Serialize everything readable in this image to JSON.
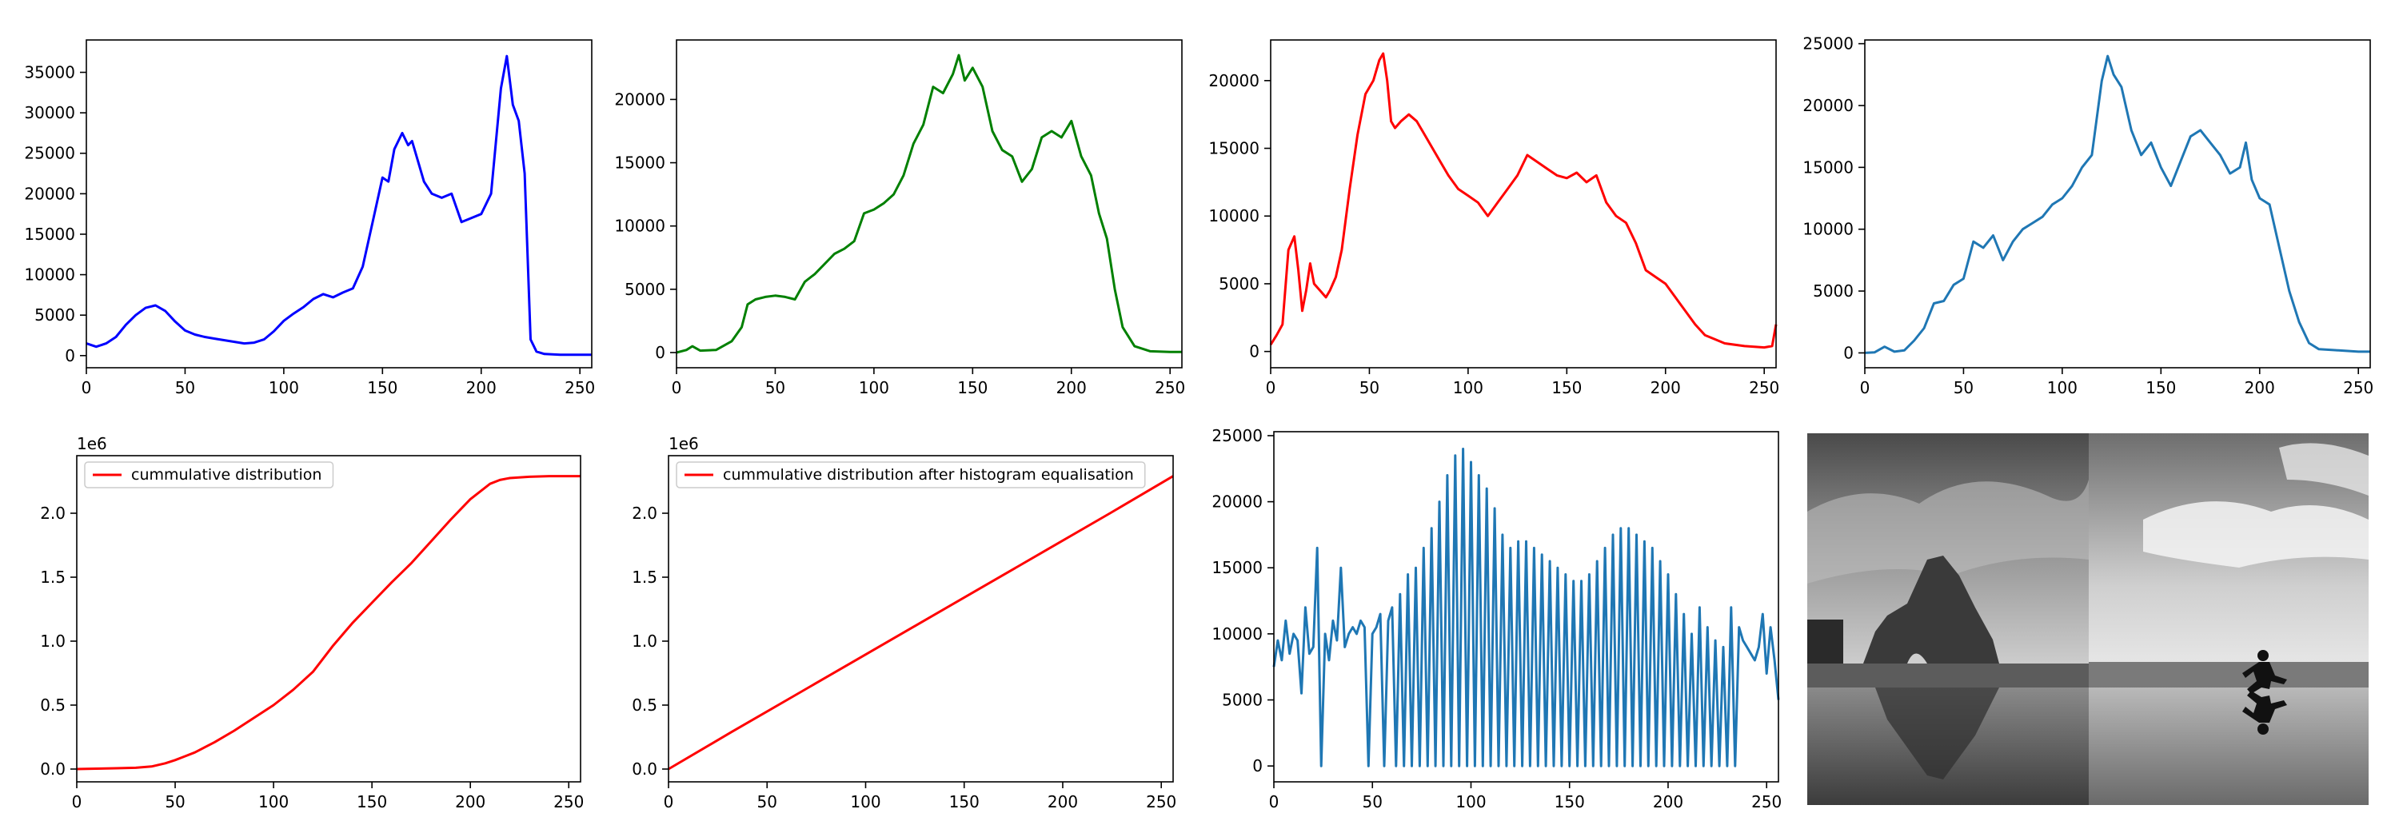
{
  "chart_data": [
    {
      "type": "line",
      "xlim": [
        0,
        256
      ],
      "ylim": [
        -1500,
        39000
      ],
      "xticks": [
        0,
        50,
        100,
        150,
        200,
        250
      ],
      "yticks": [
        0,
        5000,
        10000,
        15000,
        20000,
        25000,
        30000,
        35000
      ],
      "color": "#0000ff",
      "x": [
        0,
        5,
        10,
        15,
        20,
        25,
        30,
        35,
        40,
        45,
        50,
        55,
        60,
        65,
        70,
        75,
        80,
        85,
        90,
        95,
        100,
        105,
        110,
        115,
        120,
        125,
        130,
        135,
        140,
        145,
        150,
        153,
        156,
        160,
        163,
        165,
        168,
        171,
        175,
        180,
        185,
        190,
        195,
        200,
        205,
        210,
        213,
        216,
        219,
        222,
        225,
        228,
        232,
        240,
        250,
        256
      ],
      "y": [
        1500,
        1100,
        1500,
        2300,
        3800,
        5000,
        5900,
        6200,
        5500,
        4200,
        3100,
        2600,
        2300,
        2100,
        1900,
        1700,
        1500,
        1600,
        2000,
        3000,
        4300,
        5200,
        6000,
        7000,
        7600,
        7200,
        7800,
        8300,
        11000,
        16500,
        22000,
        21500,
        25500,
        27500,
        26000,
        26500,
        24000,
        21500,
        20000,
        19500,
        20000,
        16500,
        17000,
        17500,
        20000,
        33000,
        37000,
        31000,
        29000,
        22500,
        2000,
        500,
        200,
        100,
        100,
        100
      ]
    },
    {
      "type": "line",
      "xlim": [
        0,
        256
      ],
      "ylim": [
        -1200,
        24700
      ],
      "xticks": [
        0,
        50,
        100,
        150,
        200,
        250
      ],
      "yticks": [
        0,
        5000,
        10000,
        15000,
        20000
      ],
      "color": "#008000",
      "x": [
        0,
        5,
        8,
        12,
        20,
        28,
        33,
        36,
        40,
        45,
        50,
        55,
        60,
        65,
        70,
        75,
        80,
        85,
        90,
        95,
        100,
        105,
        110,
        115,
        120,
        125,
        130,
        135,
        140,
        143,
        146,
        150,
        155,
        160,
        165,
        170,
        175,
        180,
        185,
        190,
        195,
        200,
        205,
        210,
        214,
        218,
        222,
        226,
        232,
        240,
        250,
        256
      ],
      "y": [
        0,
        200,
        500,
        150,
        200,
        900,
        2000,
        3800,
        4200,
        4400,
        4500,
        4400,
        4200,
        5600,
        6200,
        7000,
        7800,
        8200,
        8800,
        11000,
        11300,
        11800,
        12500,
        14000,
        16500,
        18000,
        21000,
        20500,
        22000,
        23500,
        21500,
        22500,
        21000,
        17500,
        16000,
        15500,
        13500,
        14500,
        17000,
        17500,
        17000,
        18300,
        15500,
        14000,
        11000,
        9000,
        5000,
        2000,
        500,
        100,
        50,
        50
      ]
    },
    {
      "type": "line",
      "xlim": [
        0,
        256
      ],
      "ylim": [
        -1200,
        23000
      ],
      "xticks": [
        0,
        50,
        100,
        150,
        200,
        250
      ],
      "yticks": [
        0,
        5000,
        10000,
        15000,
        20000
      ],
      "color": "#ff0000",
      "x": [
        0,
        3,
        6,
        9,
        12,
        14,
        16,
        18,
        20,
        22,
        25,
        28,
        30,
        33,
        36,
        40,
        44,
        48,
        52,
        55,
        57,
        59,
        61,
        63,
        66,
        70,
        74,
        78,
        82,
        86,
        90,
        95,
        100,
        105,
        110,
        115,
        120,
        125,
        130,
        135,
        140,
        145,
        150,
        155,
        160,
        165,
        170,
        175,
        180,
        185,
        190,
        195,
        200,
        205,
        210,
        215,
        220,
        225,
        230,
        240,
        250,
        254,
        256
      ],
      "y": [
        500,
        1200,
        2000,
        7500,
        8500,
        6000,
        3000,
        4500,
        6500,
        5000,
        4500,
        4000,
        4500,
        5500,
        7500,
        12000,
        16000,
        19000,
        20000,
        21500,
        22000,
        20000,
        17000,
        16500,
        17000,
        17500,
        17000,
        16000,
        15000,
        14000,
        13000,
        12000,
        11500,
        11000,
        10000,
        11000,
        12000,
        13000,
        14500,
        14000,
        13500,
        13000,
        12800,
        13200,
        12500,
        13000,
        11000,
        10000,
        9500,
        8000,
        6000,
        5500,
        5000,
        4000,
        3000,
        2000,
        1200,
        900,
        600,
        400,
        300,
        400,
        2000
      ]
    },
    {
      "type": "line",
      "xlim": [
        0,
        256
      ],
      "ylim": [
        -1200,
        25300
      ],
      "xticks": [
        0,
        50,
        100,
        150,
        200,
        250
      ],
      "yticks": [
        0,
        5000,
        10000,
        15000,
        20000,
        25000
      ],
      "color": "#1f77b4",
      "x": [
        0,
        5,
        10,
        15,
        20,
        25,
        30,
        35,
        40,
        45,
        50,
        55,
        60,
        65,
        70,
        75,
        80,
        85,
        90,
        95,
        100,
        105,
        110,
        115,
        120,
        123,
        126,
        130,
        135,
        140,
        145,
        150,
        155,
        160,
        165,
        170,
        175,
        180,
        185,
        190,
        193,
        196,
        200,
        205,
        210,
        215,
        220,
        225,
        230,
        240,
        250,
        256
      ],
      "y": [
        0,
        50,
        500,
        100,
        200,
        1000,
        2000,
        4000,
        4200,
        5500,
        6000,
        9000,
        8500,
        9500,
        7500,
        9000,
        10000,
        10500,
        11000,
        12000,
        12500,
        13500,
        15000,
        16000,
        22000,
        24000,
        22500,
        21500,
        18000,
        16000,
        17000,
        15000,
        13500,
        15500,
        17500,
        18000,
        17000,
        16000,
        14500,
        15000,
        17000,
        14000,
        12500,
        12000,
        8500,
        5000,
        2500,
        800,
        300,
        200,
        100,
        100
      ]
    },
    {
      "type": "line",
      "xlim": [
        0,
        256
      ],
      "ylim": [
        -100000,
        2450000
      ],
      "xticks": [
        0,
        50,
        100,
        150,
        200,
        250
      ],
      "yticks": [
        0,
        500000,
        1000000,
        1500000,
        2000000
      ],
      "ytick_labels": [
        "0.0",
        "0.5",
        "1.0",
        "1.5",
        "2.0"
      ],
      "offset_text": "1e6",
      "legend": "cummulative distribution",
      "legend_loc": "upper left",
      "color": "#ff0000",
      "x": [
        0,
        10,
        20,
        30,
        38,
        45,
        50,
        55,
        60,
        70,
        80,
        90,
        100,
        110,
        120,
        130,
        140,
        150,
        160,
        170,
        180,
        190,
        200,
        210,
        215,
        220,
        230,
        240,
        250,
        256
      ],
      "y": [
        0,
        3000,
        6000,
        10000,
        20000,
        45000,
        70000,
        100000,
        130000,
        210000,
        300000,
        400000,
        500000,
        620000,
        760000,
        960000,
        1140000,
        1300000,
        1460000,
        1610000,
        1780000,
        1950000,
        2110000,
        2230000,
        2260000,
        2275000,
        2285000,
        2290000,
        2290000,
        2290000
      ]
    },
    {
      "type": "line",
      "xlim": [
        0,
        256
      ],
      "ylim": [
        -100000,
        2450000
      ],
      "xticks": [
        0,
        50,
        100,
        150,
        200,
        250
      ],
      "yticks": [
        0,
        500000,
        1000000,
        1500000,
        2000000
      ],
      "ytick_labels": [
        "0.0",
        "0.5",
        "1.0",
        "1.5",
        "2.0"
      ],
      "offset_text": "1e6",
      "legend": "cummulative distribution after histogram equalisation",
      "legend_loc": "upper left",
      "color": "#ff0000",
      "x": [
        0,
        32,
        64,
        96,
        128,
        160,
        192,
        224,
        256
      ],
      "y": [
        0,
        290000,
        575000,
        860000,
        1145000,
        1430000,
        1715000,
        2000000,
        2290000
      ]
    },
    {
      "type": "line",
      "xlim": [
        0,
        256
      ],
      "ylim": [
        -1200,
        25300
      ],
      "xticks": [
        0,
        50,
        100,
        150,
        200,
        250
      ],
      "yticks": [
        0,
        5000,
        10000,
        15000,
        20000,
        25000
      ],
      "color": "#1f77b4",
      "x": [
        0,
        2,
        4,
        6,
        8,
        10,
        12,
        14,
        16,
        18,
        20,
        22,
        24,
        26,
        28,
        30,
        32,
        34,
        36,
        38,
        40,
        42,
        44,
        46,
        48,
        50,
        52,
        54,
        56,
        58,
        60,
        62,
        64,
        66,
        68,
        70,
        72,
        74,
        76,
        78,
        80,
        82,
        84,
        86,
        88,
        90,
        92,
        94,
        96,
        98,
        100,
        102,
        104,
        106,
        108,
        110,
        112,
        114,
        116,
        118,
        120,
        122,
        124,
        126,
        128,
        130,
        132,
        134,
        136,
        138,
        140,
        142,
        144,
        146,
        148,
        150,
        152,
        154,
        156,
        158,
        160,
        162,
        164,
        166,
        168,
        170,
        172,
        174,
        176,
        178,
        180,
        182,
        184,
        186,
        188,
        190,
        192,
        194,
        196,
        198,
        200,
        202,
        204,
        206,
        208,
        210,
        212,
        214,
        216,
        218,
        220,
        222,
        224,
        226,
        228,
        230,
        232,
        234,
        236,
        238,
        240,
        242,
        244,
        246,
        248,
        250,
        252,
        254,
        256
      ],
      "y": [
        7500,
        9500,
        8000,
        11000,
        8500,
        10000,
        9500,
        5500,
        12000,
        8500,
        9000,
        16500,
        0,
        10000,
        8000,
        11000,
        9500,
        15000,
        9000,
        10000,
        10500,
        10000,
        11000,
        10500,
        0,
        10000,
        10500,
        11500,
        0,
        11000,
        12000,
        0,
        13000,
        0,
        14500,
        0,
        15000,
        0,
        16500,
        0,
        18000,
        0,
        20000,
        0,
        22000,
        0,
        23500,
        0,
        24000,
        0,
        23000,
        0,
        22000,
        0,
        21000,
        0,
        19500,
        0,
        17500,
        0,
        16500,
        0,
        17000,
        0,
        17000,
        0,
        16500,
        0,
        16000,
        0,
        15500,
        0,
        15000,
        0,
        14500,
        0,
        14000,
        0,
        14000,
        0,
        14500,
        0,
        15500,
        0,
        16500,
        0,
        17500,
        0,
        18000,
        0,
        18000,
        0,
        17500,
        0,
        17000,
        0,
        16500,
        0,
        15500,
        0,
        14500,
        0,
        13000,
        0,
        11500,
        0,
        10000,
        0,
        12000,
        0,
        10500,
        0,
        9500,
        0,
        9000,
        0,
        12000,
        0,
        10500,
        9500,
        9000,
        8500,
        8000,
        9000,
        11500,
        7000,
        10500,
        8000,
        5000
      ]
    }
  ],
  "photo": {
    "description_icon": "beach-rock-comparison-image"
  }
}
